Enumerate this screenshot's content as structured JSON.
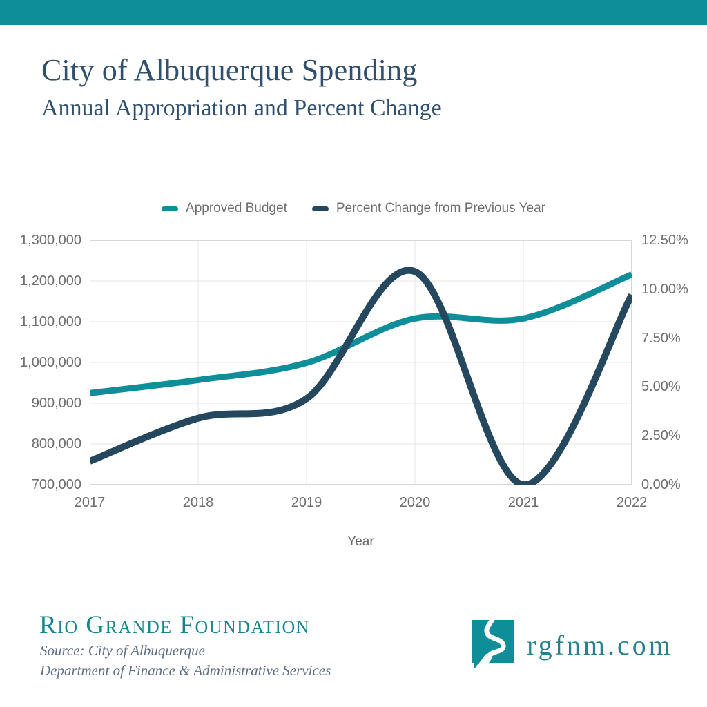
{
  "header": {
    "title": "City of Albuquerque Spending",
    "subtitle": "Annual Appropriation and Percent Change"
  },
  "legend": {
    "items": [
      {
        "label": "Approved Budget",
        "color": "#0e8e98"
      },
      {
        "label": "Percent Change from Previous Year",
        "color": "#26485f"
      }
    ]
  },
  "chart_data": {
    "type": "line",
    "title": "City of Albuquerque Spending",
    "subtitle": "Annual Appropriation and Percent Change",
    "xlabel": "Year",
    "x": [
      2017,
      2018,
      2019,
      2020,
      2021,
      2022
    ],
    "x_tick_labels": [
      "2017",
      "2018",
      "2019",
      "2020",
      "2021",
      "2022"
    ],
    "series": [
      {
        "name": "Approved Budget",
        "axis": "left",
        "color": "#0e8e98",
        "stroke_width": 9,
        "values": [
          925000,
          957000,
          999000,
          1108000,
          1108000,
          1216000
        ]
      },
      {
        "name": "Percent Change from Previous Year",
        "axis": "right",
        "color": "#26485f",
        "stroke_width": 10,
        "values": [
          1.2,
          3.4,
          4.4,
          10.9,
          0.0,
          9.7
        ]
      }
    ],
    "left_axis": {
      "min": 700000,
      "max": 1300000,
      "tick_labels": [
        "1,300,000",
        "1,200,000",
        "1,100,000",
        "1,000,000",
        "900,000",
        "800,000",
        "700,000"
      ]
    },
    "right_axis": {
      "min": 0,
      "max": 12.5,
      "tick_labels": [
        "12.50%",
        "10.00%",
        "7.50%",
        "5.00%",
        "2.50%",
        "0.00%"
      ]
    },
    "grid": true,
    "smooth": true,
    "legend_position": "top"
  },
  "footer": {
    "org": "Rio Grande Foundation",
    "source_line1": "Source: City of Albuquerque",
    "source_line2": "Department of Finance & Administrative Services",
    "website": "rgfnm.com"
  },
  "colors": {
    "topbar": "#0d8e98",
    "title_text": "#31506f",
    "org_text": "#17858f",
    "website_text": "#26818d",
    "gridline": "#e4e4e4",
    "plot_frame": "#d7d7d7",
    "axis_text": "#6e6e6e"
  }
}
